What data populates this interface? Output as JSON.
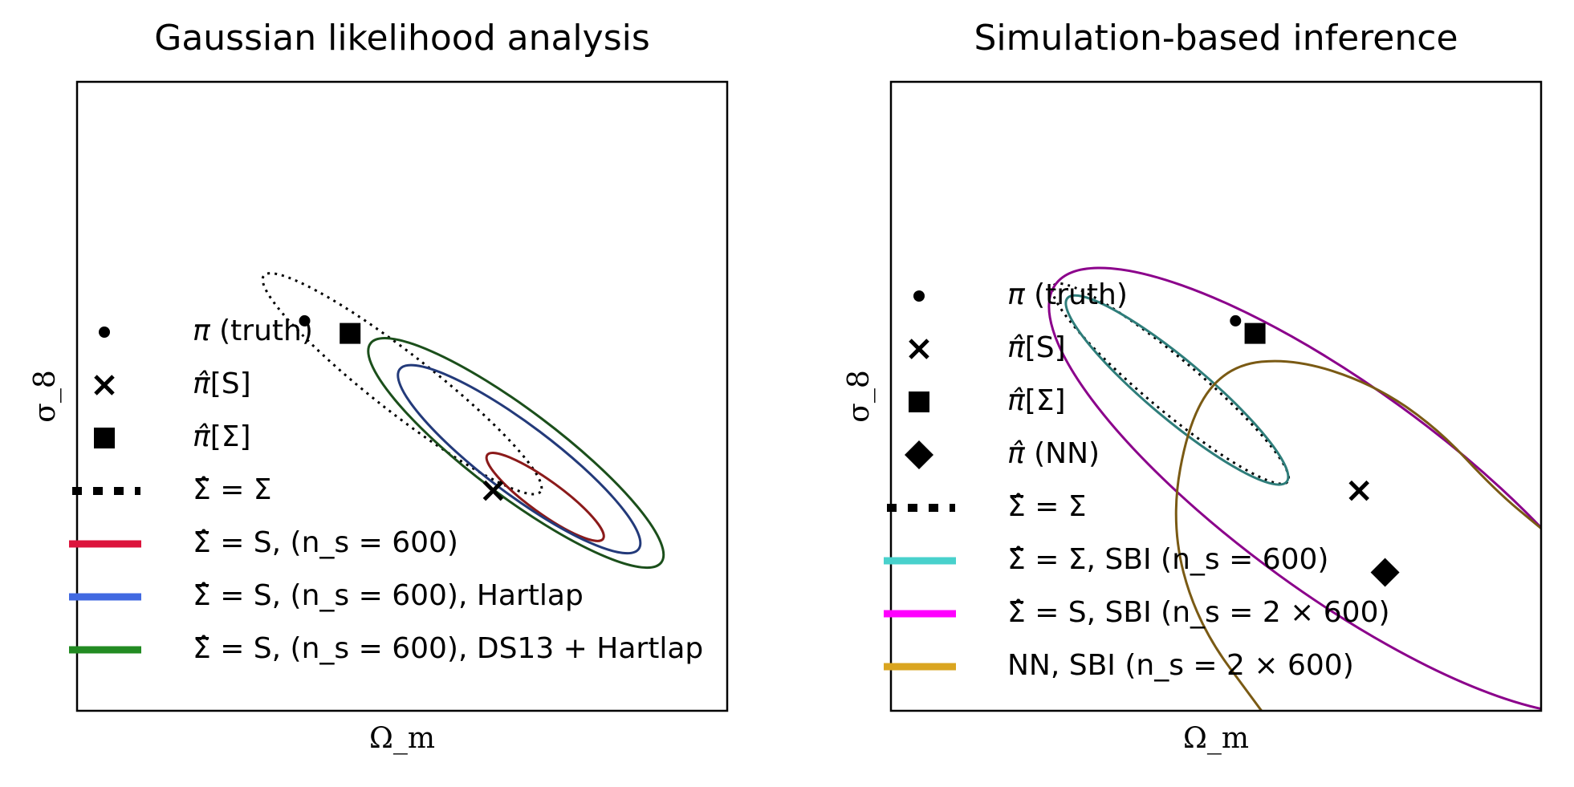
{
  "chart_data": [
    {
      "type": "contour",
      "title": "Gaussian likelihood analysis",
      "xlabel": "Ω_m",
      "ylabel": "σ_8",
      "ticks": "none",
      "legend_position": "lower-left",
      "legend": [
        {
          "id": "truth",
          "marker": "circle",
          "color": "#000000",
          "label": "π (truth)",
          "label_main": "π",
          "label_rest": " (truth)"
        },
        {
          "id": "mle_S",
          "marker": "x",
          "color": "#000000",
          "label": "π̂[S]",
          "label_main": "π̂",
          "label_rest": "[S]"
        },
        {
          "id": "mle_Sigma",
          "marker": "square",
          "color": "#000000",
          "label": "π̂[Σ]",
          "label_main": "π̂",
          "label_rest": "[Σ]"
        },
        {
          "id": "true_cov",
          "line": "dotted",
          "color": "#000000",
          "label": "Σ̂ = Σ"
        },
        {
          "id": "S_600",
          "line": "solid",
          "color": "#dc143c",
          "contour_color": "#8b1a1a",
          "label": "Σ̂ = S, (n_s = 600)"
        },
        {
          "id": "S_600_hartlap",
          "line": "solid",
          "color": "#4169e1",
          "contour_color": "#233a7a",
          "label": "Σ̂ = S, (n_s = 600), Hartlap"
        },
        {
          "id": "S_600_ds13",
          "line": "solid",
          "color": "#228b22",
          "contour_color": "#1b4f1b",
          "label": "Σ̂ = S, (n_s = 600), DS13 + Hartlap"
        }
      ],
      "points": {
        "truth": [
          0.35,
          0.62
        ],
        "mle_S": [
          0.64,
          0.35
        ],
        "mle_Sigma": [
          0.42,
          0.6
        ]
      },
      "ellipses": [
        {
          "series": "true_cov",
          "center": [
            0.5,
            0.52
          ],
          "semi_major": 0.27,
          "semi_minor": 0.045,
          "angle_deg": -38
        },
        {
          "series": "S_600",
          "center": [
            0.72,
            0.34
          ],
          "semi_major": 0.11,
          "semi_minor": 0.025,
          "angle_deg": -36
        },
        {
          "series": "S_600_hartlap",
          "center": [
            0.68,
            0.4
          ],
          "semi_major": 0.23,
          "semi_minor": 0.053,
          "angle_deg": -37
        },
        {
          "series": "S_600_ds13",
          "center": [
            0.675,
            0.41
          ],
          "semi_major": 0.28,
          "semi_minor": 0.066,
          "angle_deg": -37
        }
      ]
    },
    {
      "type": "contour",
      "title": "Simulation-based inference",
      "xlabel": "Ω_m",
      "ylabel": "σ_8",
      "ticks": "none",
      "legend_position": "left",
      "legend": [
        {
          "id": "truth",
          "marker": "circle",
          "color": "#000000",
          "label": "π (truth)",
          "label_main": "π",
          "label_rest": " (truth)"
        },
        {
          "id": "mle_S",
          "marker": "x",
          "color": "#000000",
          "label": "π̂[S]",
          "label_main": "π̂",
          "label_rest": "[S]"
        },
        {
          "id": "mle_Sigma",
          "marker": "square",
          "color": "#000000",
          "label": "π̂[Σ]",
          "label_main": "π̂",
          "label_rest": "[Σ]"
        },
        {
          "id": "mle_nn",
          "marker": "diamond",
          "color": "#000000",
          "label": "π̂ (NN)",
          "label_main": "π̂",
          "label_rest": " (NN)"
        },
        {
          "id": "true_cov",
          "line": "dotted",
          "color": "#000000",
          "label": "Σ̂ = Σ"
        },
        {
          "id": "sbi_Sigma",
          "line": "solid",
          "color": "#48d1cc",
          "contour_color": "#2e7d7a",
          "label": "Σ̂ = Σ, SBI (n_s = 600)"
        },
        {
          "id": "sbi_S",
          "line": "solid",
          "color": "#ff00ff",
          "contour_color": "#8b008b",
          "label": "Σ̂ = S, SBI (n_s = 2 × 600)"
        },
        {
          "id": "sbi_nn",
          "line": "solid",
          "color": "#daa520",
          "contour_color": "#7a5a14",
          "label": "NN, SBI (n_s = 2 × 600)"
        }
      ],
      "points": {
        "truth": [
          0.53,
          0.62
        ],
        "mle_S": [
          0.72,
          0.35
        ],
        "mle_Sigma": [
          0.56,
          0.6
        ],
        "mle_nn": [
          0.76,
          0.22
        ]
      },
      "ellipses": [
        {
          "series": "true_cov",
          "center": [
            0.43,
            0.52
          ],
          "semi_major": 0.235,
          "semi_minor": 0.04,
          "angle_deg": -40
        },
        {
          "series": "sbi_Sigma",
          "center": [
            0.44,
            0.51
          ],
          "semi_major": 0.22,
          "semi_minor": 0.045,
          "angle_deg": -40
        },
        {
          "series": "sbi_S",
          "center": [
            0.69,
            0.35
          ],
          "semi_major": 0.54,
          "semi_minor": 0.16,
          "angle_deg": -36
        }
      ],
      "curves": [
        {
          "series": "sbi_nn",
          "points": [
            [
              0.57,
              0.0
            ],
            [
              0.47,
              0.14
            ],
            [
              0.43,
              0.3
            ],
            [
              0.46,
              0.47
            ],
            [
              0.52,
              0.55
            ],
            [
              0.62,
              0.56
            ],
            [
              0.74,
              0.52
            ],
            [
              0.84,
              0.45
            ],
            [
              0.93,
              0.35
            ],
            [
              1.0,
              0.29
            ]
          ]
        }
      ]
    }
  ]
}
